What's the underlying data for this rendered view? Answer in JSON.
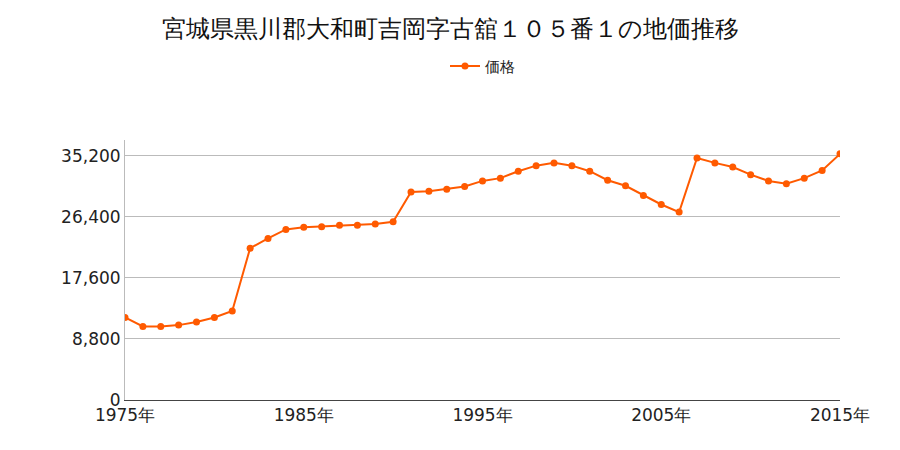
{
  "chart_data": {
    "type": "line",
    "title": "宮城県黒川郡大和町吉岡字古舘１０５番１の地価推移",
    "x": [
      1975,
      1976,
      1977,
      1978,
      1979,
      1980,
      1981,
      1982,
      1983,
      1984,
      1985,
      1986,
      1987,
      1988,
      1989,
      1990,
      1991,
      1992,
      1993,
      1994,
      1995,
      1996,
      1997,
      1998,
      1999,
      2000,
      2001,
      2002,
      2003,
      2004,
      2005,
      2006,
      2007,
      2008,
      2009,
      2010,
      2011,
      2012,
      2013,
      2014,
      2015
    ],
    "series": [
      {
        "name": "価格",
        "color": "#ff5a00",
        "marker": "circle",
        "values": [
          11900,
          10600,
          10600,
          10800,
          11250,
          11900,
          12850,
          21900,
          23300,
          24600,
          24900,
          25000,
          25200,
          25200,
          25400,
          25700,
          30000,
          30100,
          30400,
          30800,
          31600,
          32000,
          33000,
          33800,
          34200,
          33800,
          33000,
          31700,
          30900,
          29500,
          28200,
          27100,
          34900,
          34200,
          33600,
          32500,
          31600,
          31200,
          32000,
          33100,
          35500
        ]
      }
    ],
    "xlim": [
      1975,
      2015
    ],
    "xticks": [
      {
        "value": 1975,
        "label": "1975年"
      },
      {
        "value": 1985,
        "label": "1985年"
      },
      {
        "value": 1995,
        "label": "1995年"
      },
      {
        "value": 2005,
        "label": "2005年"
      },
      {
        "value": 2015,
        "label": "2015年"
      }
    ],
    "ylim": [
      0,
      37500
    ],
    "yticks": [
      0,
      {
        "value": 8800,
        "label": "8,800"
      },
      {
        "value": 17600,
        "label": "17,600"
      },
      {
        "value": 26400,
        "label": "26,400"
      },
      {
        "value": 35200,
        "label": "35,200"
      }
    ],
    "grid": true,
    "legend": "top"
  }
}
